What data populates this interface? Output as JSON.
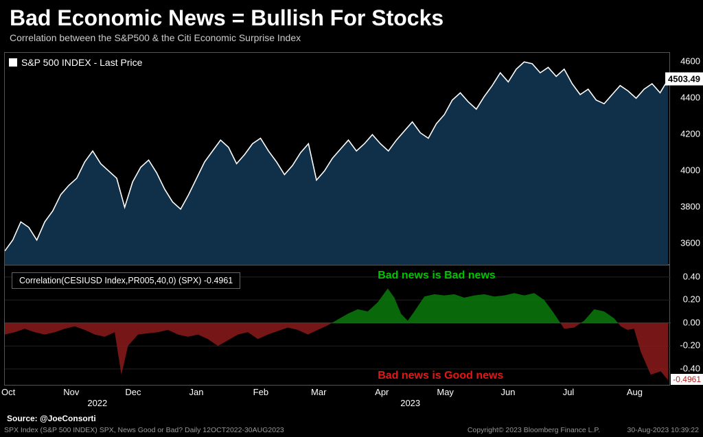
{
  "title": "Bad Economic News = Bullish For Stocks",
  "subtitle": "Correlation between the S&P500 & the Citi Economic Surprise Index",
  "series_legend": "S&P 500 INDEX - Last Price",
  "corr_legend": "Correlation(CESIUSD Index,PR005,40,0) (SPX) -0.4961",
  "top_last_value": "4503.49",
  "bottom_last_value": "-0.4961",
  "annotation_top": "Bad news is Bad news",
  "annotation_bottom": "Bad news is Good news",
  "footer_source": "Source: @JoeConsorti",
  "footer_query": "SPX Index (S&P 500 INDEX) SPX, News Good or Bad?  Daily 12OCT2022-30AUG2023",
  "footer_copyright": "Copyright© 2023 Bloomberg Finance L.P.",
  "footer_timestamp": "30-Aug-2023 10:39:22",
  "colors": {
    "background": "#000000",
    "line": "#ffffff",
    "area_fill": "#10304a",
    "grid": "#555555",
    "pos_fill": "#0a7a0a",
    "neg_fill": "#8b1a1a",
    "annotation_pos": "#00c400",
    "annotation_neg": "#e01818"
  },
  "top_chart": {
    "type": "area",
    "ylim": [
      3480,
      4650
    ],
    "yticks": [
      3600,
      3800,
      4000,
      4200,
      4400,
      4600
    ],
    "points": [
      [
        0.0,
        3560
      ],
      [
        0.012,
        3620
      ],
      [
        0.024,
        3720
      ],
      [
        0.036,
        3690
      ],
      [
        0.048,
        3620
      ],
      [
        0.06,
        3720
      ],
      [
        0.072,
        3780
      ],
      [
        0.084,
        3870
      ],
      [
        0.096,
        3920
      ],
      [
        0.108,
        3960
      ],
      [
        0.12,
        4050
      ],
      [
        0.132,
        4110
      ],
      [
        0.144,
        4040
      ],
      [
        0.156,
        4000
      ],
      [
        0.168,
        3960
      ],
      [
        0.18,
        3800
      ],
      [
        0.192,
        3940
      ],
      [
        0.204,
        4020
      ],
      [
        0.216,
        4060
      ],
      [
        0.228,
        3990
      ],
      [
        0.24,
        3900
      ],
      [
        0.252,
        3830
      ],
      [
        0.264,
        3790
      ],
      [
        0.276,
        3870
      ],
      [
        0.288,
        3960
      ],
      [
        0.3,
        4050
      ],
      [
        0.312,
        4110
      ],
      [
        0.324,
        4170
      ],
      [
        0.336,
        4130
      ],
      [
        0.348,
        4040
      ],
      [
        0.36,
        4090
      ],
      [
        0.372,
        4150
      ],
      [
        0.384,
        4180
      ],
      [
        0.396,
        4110
      ],
      [
        0.408,
        4050
      ],
      [
        0.42,
        3980
      ],
      [
        0.432,
        4030
      ],
      [
        0.444,
        4100
      ],
      [
        0.456,
        4150
      ],
      [
        0.468,
        3950
      ],
      [
        0.48,
        4000
      ],
      [
        0.492,
        4070
      ],
      [
        0.504,
        4120
      ],
      [
        0.516,
        4170
      ],
      [
        0.528,
        4110
      ],
      [
        0.54,
        4150
      ],
      [
        0.552,
        4200
      ],
      [
        0.564,
        4150
      ],
      [
        0.576,
        4110
      ],
      [
        0.588,
        4170
      ],
      [
        0.6,
        4220
      ],
      [
        0.612,
        4270
      ],
      [
        0.624,
        4210
      ],
      [
        0.636,
        4180
      ],
      [
        0.648,
        4260
      ],
      [
        0.66,
        4310
      ],
      [
        0.672,
        4390
      ],
      [
        0.684,
        4430
      ],
      [
        0.696,
        4380
      ],
      [
        0.708,
        4340
      ],
      [
        0.72,
        4410
      ],
      [
        0.732,
        4470
      ],
      [
        0.744,
        4540
      ],
      [
        0.756,
        4490
      ],
      [
        0.768,
        4560
      ],
      [
        0.78,
        4600
      ],
      [
        0.792,
        4590
      ],
      [
        0.804,
        4540
      ],
      [
        0.816,
        4570
      ],
      [
        0.828,
        4520
      ],
      [
        0.84,
        4560
      ],
      [
        0.852,
        4480
      ],
      [
        0.864,
        4420
      ],
      [
        0.876,
        4450
      ],
      [
        0.888,
        4390
      ],
      [
        0.9,
        4370
      ],
      [
        0.912,
        4420
      ],
      [
        0.924,
        4470
      ],
      [
        0.936,
        4440
      ],
      [
        0.948,
        4400
      ],
      [
        0.96,
        4450
      ],
      [
        0.972,
        4480
      ],
      [
        0.984,
        4430
      ],
      [
        0.996,
        4503
      ]
    ]
  },
  "bottom_chart": {
    "type": "area-posneg",
    "ylim": [
      -0.55,
      0.5
    ],
    "yticks": [
      -0.4,
      -0.2,
      0.0,
      0.2,
      0.4
    ],
    "points": [
      [
        0.0,
        -0.1
      ],
      [
        0.015,
        -0.08
      ],
      [
        0.03,
        -0.05
      ],
      [
        0.045,
        -0.08
      ],
      [
        0.06,
        -0.1
      ],
      [
        0.075,
        -0.08
      ],
      [
        0.09,
        -0.05
      ],
      [
        0.105,
        -0.03
      ],
      [
        0.12,
        -0.06
      ],
      [
        0.135,
        -0.1
      ],
      [
        0.15,
        -0.12
      ],
      [
        0.165,
        -0.08
      ],
      [
        0.175,
        -0.45
      ],
      [
        0.185,
        -0.2
      ],
      [
        0.2,
        -0.1
      ],
      [
        0.215,
        -0.09
      ],
      [
        0.23,
        -0.08
      ],
      [
        0.245,
        -0.06
      ],
      [
        0.26,
        -0.1
      ],
      [
        0.275,
        -0.12
      ],
      [
        0.29,
        -0.1
      ],
      [
        0.305,
        -0.14
      ],
      [
        0.32,
        -0.2
      ],
      [
        0.335,
        -0.15
      ],
      [
        0.35,
        -0.1
      ],
      [
        0.365,
        -0.08
      ],
      [
        0.38,
        -0.14
      ],
      [
        0.395,
        -0.1
      ],
      [
        0.41,
        -0.07
      ],
      [
        0.425,
        -0.04
      ],
      [
        0.44,
        -0.06
      ],
      [
        0.455,
        -0.1
      ],
      [
        0.47,
        -0.06
      ],
      [
        0.485,
        -0.02
      ],
      [
        0.5,
        0.03
      ],
      [
        0.515,
        0.08
      ],
      [
        0.53,
        0.12
      ],
      [
        0.545,
        0.1
      ],
      [
        0.56,
        0.18
      ],
      [
        0.575,
        0.3
      ],
      [
        0.585,
        0.22
      ],
      [
        0.595,
        0.08
      ],
      [
        0.605,
        0.02
      ],
      [
        0.615,
        0.1
      ],
      [
        0.63,
        0.23
      ],
      [
        0.645,
        0.25
      ],
      [
        0.66,
        0.24
      ],
      [
        0.675,
        0.25
      ],
      [
        0.69,
        0.22
      ],
      [
        0.705,
        0.24
      ],
      [
        0.72,
        0.25
      ],
      [
        0.735,
        0.23
      ],
      [
        0.75,
        0.24
      ],
      [
        0.765,
        0.26
      ],
      [
        0.78,
        0.24
      ],
      [
        0.795,
        0.26
      ],
      [
        0.81,
        0.2
      ],
      [
        0.825,
        0.08
      ],
      [
        0.84,
        -0.05
      ],
      [
        0.855,
        -0.04
      ],
      [
        0.87,
        0.02
      ],
      [
        0.885,
        0.12
      ],
      [
        0.9,
        0.1
      ],
      [
        0.915,
        0.04
      ],
      [
        0.925,
        -0.03
      ],
      [
        0.935,
        -0.06
      ],
      [
        0.945,
        -0.05
      ],
      [
        0.955,
        -0.25
      ],
      [
        0.97,
        -0.45
      ],
      [
        0.985,
        -0.42
      ],
      [
        0.996,
        -0.4961
      ]
    ]
  },
  "x_axis": {
    "months": [
      {
        "x": 0.0,
        "label": "Oct"
      },
      {
        "x": 0.093,
        "label": "Nov"
      },
      {
        "x": 0.186,
        "label": "Dec"
      },
      {
        "x": 0.282,
        "label": "Jan"
      },
      {
        "x": 0.378,
        "label": "Feb"
      },
      {
        "x": 0.465,
        "label": "Mar"
      },
      {
        "x": 0.561,
        "label": "Apr"
      },
      {
        "x": 0.654,
        "label": "May"
      },
      {
        "x": 0.75,
        "label": "Jun"
      },
      {
        "x": 0.843,
        "label": "Jul"
      },
      {
        "x": 0.939,
        "label": "Aug"
      }
    ],
    "years": [
      {
        "x": 0.14,
        "label": "2022"
      },
      {
        "x": 0.61,
        "label": "2023"
      }
    ]
  }
}
